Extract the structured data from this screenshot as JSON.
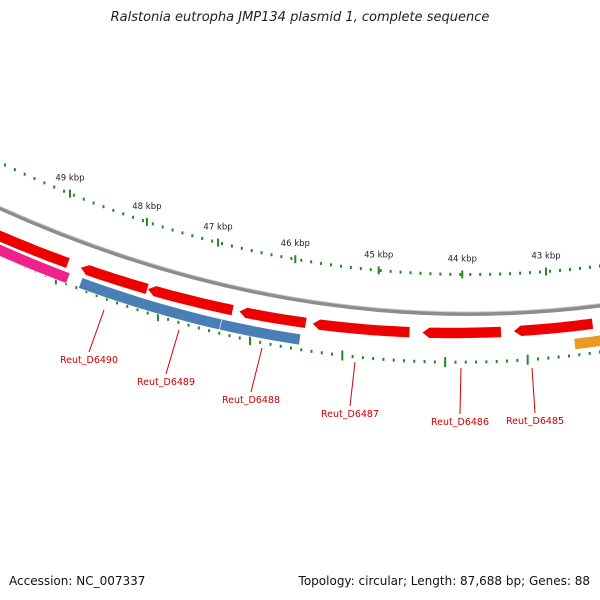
{
  "header": {
    "title": "Ralstonia eutropha JMP134 plasmid 1, complete sequence"
  },
  "footer": {
    "accession": "Accession: NC_007337",
    "summary": "Topology: circular; Length: 87,688 bp; Genes: 88"
  },
  "scale_labels": [
    "49 kbp",
    "48 kbp",
    "47 kbp",
    "46 kbp",
    "45 kbp",
    "44 kbp",
    "43 kbp"
  ],
  "gene_labels": [
    "Reut_D6490",
    "Reut_D6489",
    "Reut_D6488",
    "Reut_D6487",
    "Reut_D6486",
    "Reut_D6485"
  ],
  "colors": {
    "backbone": "#8c8c8c",
    "forward_gene": "#ee0000",
    "reverse_gene": "#4a7fb5",
    "pink_gene": "#ee2288",
    "orange_gene": "#ee9922",
    "tick": "#228822",
    "gene_label": "#cc0000"
  }
}
